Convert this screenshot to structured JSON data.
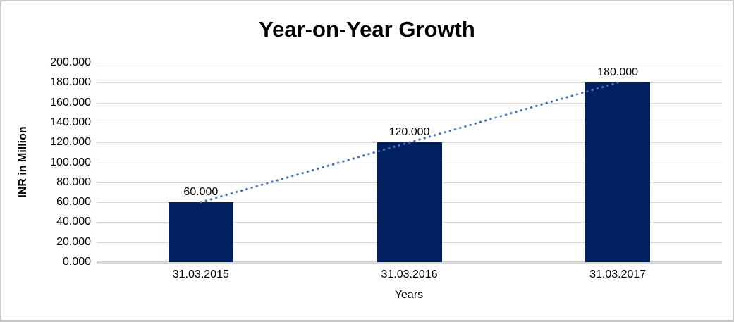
{
  "chart_data": {
    "type": "bar",
    "title": "Year-on-Year Growth",
    "xlabel": "Years",
    "ylabel": "INR in Million",
    "categories": [
      "31.03.2015",
      "31.03.2016",
      "31.03.2017"
    ],
    "values": [
      60,
      120,
      180
    ],
    "value_labels": [
      "60.000",
      "120.000",
      "180.000"
    ],
    "ylim": [
      0,
      200
    ],
    "ytick_step": 20,
    "ytick_labels": [
      "0.000",
      "20.000",
      "40.000",
      "60.000",
      "80.000",
      "100.000",
      "120.000",
      "140.000",
      "160.000",
      "180.000",
      "200.000"
    ],
    "grid": true,
    "legend": false,
    "bar_color": "#002060",
    "gridline_color": "#d9d9d9",
    "axis_line_color": "#d6d6d6",
    "trendline": {
      "style": "dotted",
      "color": "#4472C4",
      "from_value": 60,
      "to_value": 180
    }
  }
}
